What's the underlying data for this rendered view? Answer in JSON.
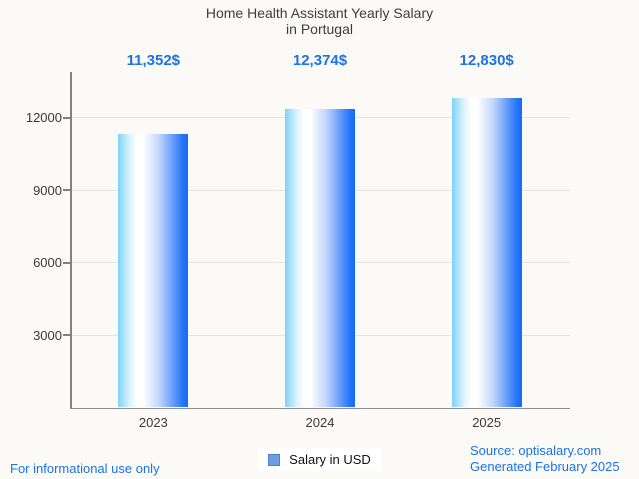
{
  "page": {
    "background": "#fbfaf7",
    "title_line1": "Home Health Assistant Yearly Salary",
    "title_line2": "in Portugal",
    "footer_left": "For informational use only",
    "source_line1": "Source: optisalary.com",
    "source_line2": "Generated February 2025",
    "text_blue": "#1a73e8"
  },
  "legend": {
    "label": "Salary in USD",
    "swatch_color": "#6d9ee0",
    "swatch_border_color": "#4d82c4"
  },
  "chart_data": {
    "type": "bar",
    "title": "Home Health Assistant Yearly Salary in Portugal",
    "categories": [
      "2023",
      "2024",
      "2025"
    ],
    "values": [
      11352,
      12374,
      12830
    ],
    "value_labels": [
      "11,352$",
      "12,374$",
      "12,830$"
    ],
    "series_name": "Salary in USD",
    "xlabel": "",
    "ylabel": "",
    "yticks": [
      3000,
      6000,
      9000,
      12000
    ],
    "ylim": [
      0,
      13900
    ],
    "grid": "horizontal",
    "legend_position": "bottom",
    "value_label_color": "#1a73e8",
    "bar_gradient": [
      "#7ed2f8",
      "#ffffff",
      "#186af5"
    ],
    "axis_color": "#828282",
    "grid_color": "#e6e4e1",
    "tick_label_color": "#3a3a3a"
  }
}
